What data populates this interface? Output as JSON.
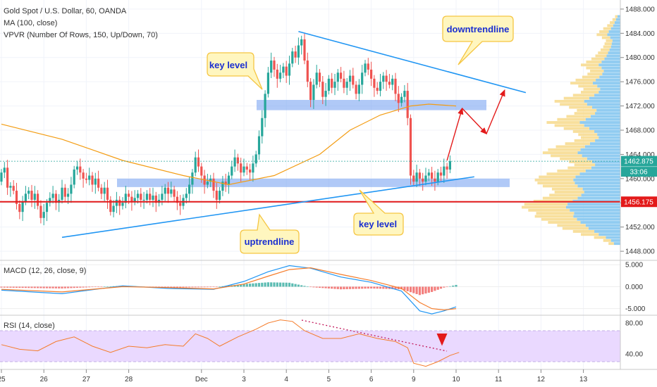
{
  "header": {
    "symbol_line": "Gold Spot / U.S. Dollar, 60, OANDA",
    "ma_line": "MA (100, close)",
    "vpvr_line": "VPVR (Number Of Rows, 150, Up/Down, 70)"
  },
  "colors": {
    "up_candle": "#26a69a",
    "down_candle": "#ef5350",
    "ma": "#f39c12",
    "trendline": "#2196f3",
    "zone": "#6f9df0",
    "support_line": "#e31a1a",
    "arrow": "#e31a1a",
    "callout_fill": "#fff6bf",
    "callout_border": "#f5c542",
    "callout_text": "#1a2fd1",
    "rsi_band": "#ead9ff",
    "rsi_line": "#f57c2a",
    "macd_line": "#2196f3",
    "signal_line": "#f57c2a",
    "vp_up": "#7ec3ef",
    "vp_down": "#f7d98b"
  },
  "callouts": {
    "downtrend": "downtrendline",
    "key_level_top": "key level",
    "uptrend": "uptrendline",
    "key_level_bottom": "key level"
  },
  "price_badges": {
    "current": "1462.875",
    "countdown": "33:06",
    "support": "1456.175"
  },
  "panels": {
    "macd_title": "MACD (12, 26, close, 9)",
    "rsi_title": "RSI (14, close)"
  },
  "chart_data": {
    "type": "candlestick",
    "title": "Gold Spot / U.S. Dollar, 60, OANDA",
    "y_ticks": [
      "1448.000",
      "1452.000",
      "1456.000",
      "1460.000",
      "1464.000",
      "1468.000",
      "1472.000",
      "1476.000",
      "1480.000",
      "1484.000",
      "1488.000"
    ],
    "y_range": [
      1446.5,
      1489.5
    ],
    "x_ticks": [
      "25",
      "26",
      "27",
      "28",
      "Dec",
      "3",
      "4",
      "5",
      "6",
      "9",
      "10",
      "11",
      "12",
      "13"
    ],
    "x_tick_index": [
      0,
      14,
      28,
      42,
      66,
      80,
      94,
      108,
      122,
      136,
      150,
      164,
      178,
      192
    ],
    "candles": [
      [
        1459.5,
        1461.0
      ],
      [
        1461.0,
        1461.8
      ],
      [
        1461.8,
        1458.5
      ],
      [
        1458.5,
        1458.8
      ],
      [
        1458.8,
        1458.0
      ],
      [
        1458.0,
        1455.8
      ],
      [
        1455.8,
        1454.5
      ],
      [
        1454.5,
        1456.2
      ],
      [
        1456.2,
        1457.5
      ],
      [
        1457.5,
        1458.0
      ],
      [
        1458.0,
        1456.5
      ],
      [
        1456.5,
        1457.5
      ],
      [
        1457.5,
        1455.5
      ],
      [
        1455.5,
        1453.5
      ],
      [
        1453.5,
        1454.5
      ],
      [
        1454.5,
        1456.0
      ],
      [
        1456.0,
        1456.8
      ],
      [
        1456.8,
        1457.5
      ],
      [
        1457.5,
        1456.0
      ],
      [
        1456.0,
        1456.5
      ],
      [
        1456.5,
        1458.5
      ],
      [
        1458.5,
        1457.0
      ],
      [
        1457.0,
        1457.5
      ],
      [
        1457.5,
        1459.0
      ],
      [
        1459.0,
        1461.5
      ],
      [
        1461.5,
        1462.0
      ],
      [
        1462.0,
        1461.0
      ],
      [
        1461.0,
        1460.0
      ],
      [
        1460.0,
        1459.8
      ],
      [
        1459.8,
        1460.5
      ],
      [
        1460.5,
        1459.0
      ],
      [
        1459.0,
        1460.0
      ],
      [
        1460.0,
        1458.5
      ],
      [
        1458.5,
        1457.5
      ],
      [
        1457.5,
        1458.5
      ],
      [
        1458.5,
        1456.5
      ],
      [
        1456.5,
        1454.5
      ],
      [
        1454.5,
        1455.5
      ],
      [
        1455.5,
        1456.5
      ],
      [
        1456.5,
        1455.5
      ],
      [
        1455.5,
        1456.0
      ],
      [
        1456.0,
        1457.5
      ],
      [
        1457.5,
        1457.0
      ],
      [
        1457.0,
        1456.2
      ],
      [
        1456.2,
        1456.8
      ],
      [
        1456.8,
        1457.5
      ],
      [
        1457.5,
        1456.5
      ],
      [
        1456.5,
        1456.5
      ],
      [
        1456.5,
        1457.5
      ],
      [
        1457.5,
        1456.5
      ],
      [
        1456.5,
        1457.2
      ],
      [
        1457.2,
        1456.0
      ],
      [
        1456.0,
        1456.5
      ],
      [
        1456.5,
        1457.5
      ],
      [
        1457.5,
        1458.5
      ],
      [
        1458.5,
        1457.5
      ],
      [
        1457.5,
        1458.2
      ],
      [
        1458.2,
        1457.0
      ],
      [
        1457.0,
        1456.0
      ],
      [
        1456.0,
        1455.5
      ],
      [
        1455.5,
        1456.8
      ],
      [
        1456.8,
        1457.5
      ],
      [
        1457.5,
        1459.0
      ],
      [
        1459.0,
        1461.0
      ],
      [
        1461.0,
        1463.5
      ],
      [
        1463.5,
        1462.0
      ],
      [
        1462.0,
        1460.5
      ],
      [
        1460.5,
        1459.0
      ],
      [
        1459.0,
        1459.5
      ],
      [
        1459.5,
        1460.0
      ],
      [
        1460.0,
        1458.0
      ],
      [
        1458.0,
        1456.5
      ],
      [
        1456.5,
        1458.0
      ],
      [
        1458.0,
        1459.5
      ],
      [
        1459.5,
        1459.0
      ],
      [
        1459.0,
        1460.5
      ],
      [
        1460.5,
        1462.0
      ],
      [
        1462.0,
        1463.5
      ],
      [
        1463.5,
        1462.5
      ],
      [
        1462.5,
        1461.0
      ],
      [
        1461.0,
        1462.0
      ],
      [
        1462.0,
        1461.5
      ],
      [
        1461.5,
        1461.0
      ],
      [
        1461.0,
        1462.5
      ],
      [
        1462.5,
        1464.0
      ],
      [
        1464.0,
        1467.0
      ],
      [
        1467.0,
        1470.0
      ],
      [
        1470.0,
        1474.0
      ],
      [
        1474.0,
        1477.5
      ],
      [
        1477.5,
        1479.5
      ],
      [
        1479.5,
        1478.0
      ],
      [
        1478.0,
        1476.5
      ],
      [
        1476.5,
        1477.5
      ],
      [
        1477.5,
        1478.5
      ],
      [
        1478.5,
        1477.0
      ],
      [
        1477.0,
        1479.0
      ],
      [
        1479.0,
        1481.0
      ],
      [
        1481.0,
        1480.0
      ],
      [
        1480.0,
        1482.0
      ],
      [
        1482.0,
        1483.0
      ],
      [
        1483.0,
        1479.5
      ],
      [
        1479.5,
        1476.0
      ],
      [
        1476.0,
        1473.0
      ],
      [
        1473.0,
        1475.5
      ],
      [
        1475.5,
        1477.5
      ],
      [
        1477.5,
        1476.0
      ],
      [
        1476.0,
        1473.5
      ],
      [
        1473.5,
        1474.5
      ],
      [
        1474.5,
        1476.5
      ],
      [
        1476.5,
        1475.0
      ],
      [
        1475.0,
        1476.0
      ],
      [
        1476.0,
        1477.5
      ],
      [
        1477.5,
        1476.5
      ],
      [
        1476.5,
        1475.0
      ],
      [
        1475.0,
        1476.0
      ],
      [
        1476.0,
        1477.0
      ],
      [
        1477.0,
        1475.5
      ],
      [
        1475.5,
        1474.0
      ],
      [
        1474.0,
        1475.5
      ],
      [
        1475.5,
        1477.5
      ],
      [
        1477.5,
        1479.0
      ],
      [
        1479.0,
        1478.0
      ],
      [
        1478.0,
        1476.5
      ],
      [
        1476.5,
        1475.0
      ],
      [
        1475.0,
        1474.5
      ],
      [
        1474.5,
        1476.0
      ],
      [
        1476.0,
        1477.0
      ],
      [
        1477.0,
        1476.0
      ],
      [
        1476.0,
        1475.5
      ],
      [
        1475.5,
        1476.5
      ],
      [
        1476.5,
        1474.0
      ],
      [
        1474.0,
        1472.5
      ],
      [
        1472.5,
        1473.5
      ],
      [
        1473.5,
        1474.5
      ],
      [
        1474.5,
        1470.0
      ],
      [
        1470.0,
        1460.5
      ],
      [
        1460.5,
        1459.5
      ],
      [
        1459.5,
        1461.0
      ],
      [
        1461.0,
        1460.0
      ],
      [
        1460.0,
        1459.5
      ],
      [
        1459.5,
        1460.5
      ],
      [
        1460.5,
        1461.0
      ],
      [
        1461.0,
        1460.0
      ],
      [
        1460.0,
        1459.5
      ],
      [
        1459.5,
        1461.0
      ],
      [
        1461.0,
        1460.5
      ],
      [
        1460.5,
        1462.0
      ],
      [
        1462.0,
        1461.5
      ],
      [
        1461.5,
        1462.875
      ]
    ],
    "ma_100": [
      [
        0,
        1469.0
      ],
      [
        20,
        1466.5
      ],
      [
        40,
        1463.0
      ],
      [
        60,
        1460.5
      ],
      [
        75,
        1459.0
      ],
      [
        90,
        1460.5
      ],
      [
        105,
        1464.0
      ],
      [
        115,
        1468.0
      ],
      [
        125,
        1470.5
      ],
      [
        135,
        1472.0
      ],
      [
        141,
        1472.3
      ],
      [
        150,
        1472.0
      ]
    ],
    "volume_profile": {
      "price_start": 1449.0,
      "price_step": 0.5,
      "widths": [
        18,
        26,
        40,
        60,
        72,
        88,
        96,
        110,
        120,
        130,
        128,
        140,
        150,
        146,
        132,
        118,
        108,
        100,
        104,
        118,
        126,
        130,
        124,
        112,
        96,
        80,
        70,
        78,
        92,
        106,
        118,
        110,
        98,
        84,
        70,
        60,
        64,
        72,
        86,
        100,
        112,
        96,
        82,
        70,
        66,
        78,
        92,
        100,
        86,
        72,
        60,
        56,
        64,
        76,
        68,
        58,
        50,
        46,
        52,
        60,
        52,
        44,
        38,
        34,
        30,
        26,
        24,
        22,
        28,
        36,
        32,
        26,
        20,
        16,
        12,
        8
      ]
    },
    "volume_up_fraction": 0.55,
    "macd": {
      "title": "MACD (12, 26, close, 9)",
      "y_ticks": [
        "5.000",
        "0.000",
        "-5.000"
      ],
      "y_range": [
        -6.5,
        6.0
      ],
      "macd": [
        [
          0,
          -0.8
        ],
        [
          20,
          -1.6
        ],
        [
          40,
          0.2
        ],
        [
          55,
          -0.4
        ],
        [
          70,
          -0.6
        ],
        [
          80,
          1.2
        ],
        [
          88,
          3.4
        ],
        [
          95,
          4.8
        ],
        [
          102,
          4.2
        ],
        [
          112,
          2.2
        ],
        [
          122,
          1.0
        ],
        [
          132,
          -1.0
        ],
        [
          138,
          -5.5
        ],
        [
          142,
          -6.2
        ],
        [
          146,
          -5.5
        ],
        [
          150,
          -4.6
        ]
      ],
      "signal": [
        [
          0,
          -0.6
        ],
        [
          20,
          -1.2
        ],
        [
          40,
          0.0
        ],
        [
          55,
          -0.2
        ],
        [
          70,
          -0.5
        ],
        [
          80,
          0.6
        ],
        [
          88,
          2.4
        ],
        [
          95,
          3.9
        ],
        [
          102,
          4.3
        ],
        [
          112,
          2.8
        ],
        [
          122,
          1.4
        ],
        [
          132,
          -0.4
        ],
        [
          138,
          -3.6
        ],
        [
          142,
          -5.0
        ],
        [
          146,
          -5.3
        ],
        [
          150,
          -5.0
        ]
      ]
    },
    "rsi": {
      "title": "RSI (14, close)",
      "y_ticks": [
        "80.00",
        "40.00"
      ],
      "y_range": [
        20,
        90
      ],
      "band": [
        30,
        70
      ],
      "values": [
        [
          0,
          52
        ],
        [
          6,
          46
        ],
        [
          12,
          44
        ],
        [
          18,
          56
        ],
        [
          24,
          62
        ],
        [
          30,
          50
        ],
        [
          36,
          42
        ],
        [
          42,
          50
        ],
        [
          48,
          48
        ],
        [
          54,
          52
        ],
        [
          60,
          50
        ],
        [
          64,
          66
        ],
        [
          68,
          60
        ],
        [
          72,
          50
        ],
        [
          78,
          62
        ],
        [
          84,
          72
        ],
        [
          88,
          80
        ],
        [
          92,
          84
        ],
        [
          96,
          82
        ],
        [
          100,
          70
        ],
        [
          106,
          60
        ],
        [
          112,
          60
        ],
        [
          118,
          66
        ],
        [
          124,
          60
        ],
        [
          130,
          56
        ],
        [
          134,
          48
        ],
        [
          136,
          28
        ],
        [
          140,
          24
        ],
        [
          144,
          30
        ],
        [
          148,
          38
        ],
        [
          151,
          42
        ]
      ]
    }
  }
}
